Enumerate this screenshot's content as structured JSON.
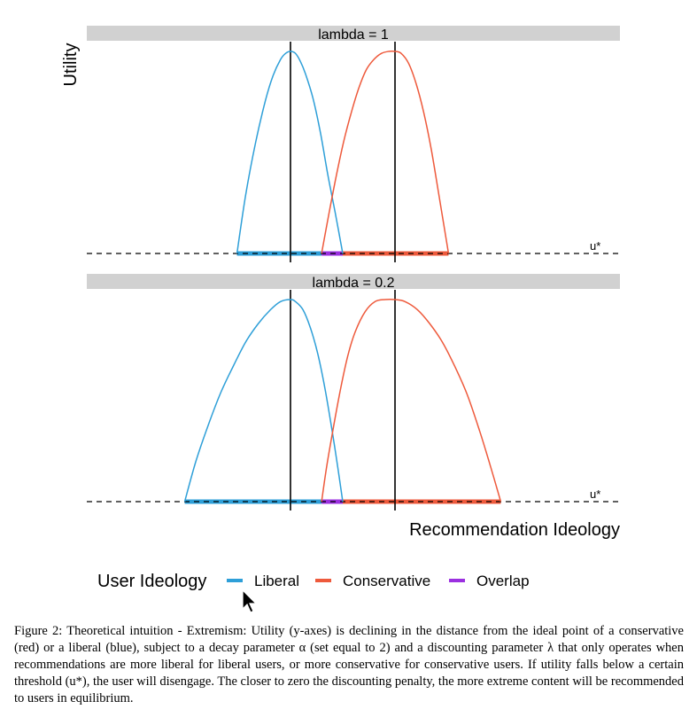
{
  "chart_data": {
    "type": "line",
    "ylabel": "Utility",
    "xlabel": "Recommendation Ideology",
    "threshold_label": "u*",
    "x_range": [
      -1.1,
      1.1
    ],
    "liberal_ideal": -0.42,
    "conservative_ideal": 0.42,
    "facets": [
      {
        "strip": "lambda = 1",
        "series": [
          {
            "name": "Liberal",
            "color": "#2E9FD8",
            "x": [
              -0.85,
              -0.78,
              -0.7,
              -0.62,
              -0.56,
              -0.5,
              -0.46,
              -0.42,
              -0.38,
              -0.34,
              -0.3,
              -0.24,
              -0.18,
              -0.12,
              -0.06,
              0.0
            ],
            "y": [
              0.0,
              0.29,
              0.55,
              0.76,
              0.88,
              0.96,
              0.99,
              1.0,
              0.99,
              0.95,
              0.89,
              0.77,
              0.6,
              0.39,
              0.2,
              0.0
            ]
          },
          {
            "name": "Conservative",
            "color": "#EE5A3C",
            "x": [
              -0.17,
              -0.11,
              -0.05,
              0.01,
              0.07,
              0.13,
              0.19,
              0.25,
              0.31,
              0.37,
              0.42,
              0.47,
              0.53,
              0.59,
              0.65,
              0.71,
              0.77,
              0.85
            ],
            "y": [
              0.0,
              0.2,
              0.39,
              0.56,
              0.7,
              0.82,
              0.91,
              0.96,
              0.99,
              1.0,
              1.0,
              0.99,
              0.94,
              0.84,
              0.7,
              0.52,
              0.3,
              0.0
            ]
          }
        ],
        "support": {
          "Liberal": [
            -0.85,
            -0.17
          ],
          "Overlap": [
            -0.17,
            0.0
          ],
          "Conservative": [
            0.0,
            0.85
          ]
        }
      },
      {
        "strip": "lambda = 0.2",
        "series": [
          {
            "name": "Liberal",
            "color": "#2E9FD8",
            "x": [
              -1.27,
              -1.18,
              -1.08,
              -0.98,
              -0.88,
              -0.78,
              -0.68,
              -0.58,
              -0.5,
              -0.42,
              -0.38,
              -0.32,
              -0.26,
              -0.2,
              -0.14,
              -0.08,
              -0.04,
              0.0
            ],
            "y": [
              0.0,
              0.2,
              0.38,
              0.54,
              0.67,
              0.79,
              0.88,
              0.95,
              0.99,
              1.0,
              0.99,
              0.95,
              0.86,
              0.73,
              0.55,
              0.33,
              0.17,
              0.0
            ]
          },
          {
            "name": "Conservative",
            "color": "#EE5A3C",
            "x": [
              -0.17,
              -0.13,
              -0.08,
              -0.02,
              0.04,
              0.1,
              0.18,
              0.26,
              0.34,
              0.42,
              0.5,
              0.6,
              0.7,
              0.8,
              0.9,
              1.0,
              1.1,
              1.18,
              1.27
            ],
            "y": [
              0.0,
              0.17,
              0.35,
              0.55,
              0.72,
              0.84,
              0.94,
              0.99,
              1.0,
              1.0,
              0.99,
              0.95,
              0.88,
              0.79,
              0.67,
              0.53,
              0.35,
              0.19,
              0.0
            ]
          }
        ],
        "support": {
          "Liberal": [
            -1.27,
            -0.17
          ],
          "Overlap": [
            -0.17,
            0.0
          ],
          "Conservative": [
            0.0,
            1.27
          ]
        }
      }
    ],
    "legend": {
      "title": "User Ideology",
      "placement": "bottom",
      "items": [
        {
          "label": "Liberal",
          "color": "#2E9FD8"
        },
        {
          "label": "Conservative",
          "color": "#EE5A3C"
        },
        {
          "label": "Overlap",
          "color": "#9B30E0"
        }
      ]
    }
  },
  "caption": "Figure 2: Theoretical intuition - Extremism: Utility (y-axes) is declining in the distance from the ideal point of a conservative (red) or a liberal (blue), subject to a decay parameter α (set equal to 2) and a discounting parameter λ that only operates when recommendations are more liberal for liberal users, or more conservative for conservative users. If utility falls below a certain threshold (u*), the user will disengage. The closer to zero the discounting penalty, the more extreme content will be recommended to users in equilibrium."
}
